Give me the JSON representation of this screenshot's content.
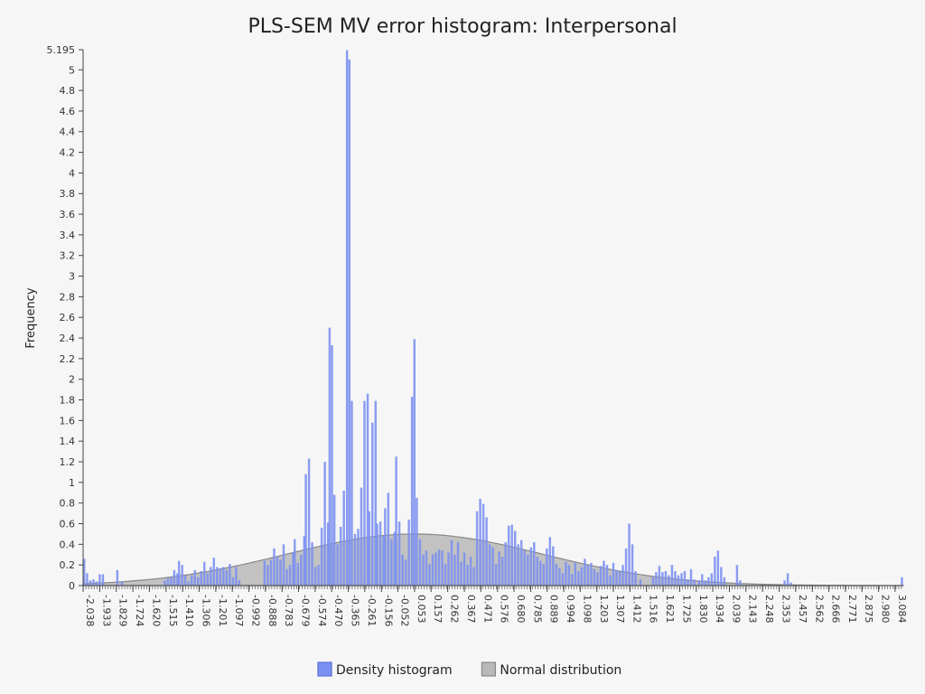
{
  "chart_data": {
    "type": "bar",
    "title": "PLS-SEM MV error histogram: Interpersonal",
    "xlabel": "",
    "ylabel": "Frequency",
    "ylim": [
      0,
      5.195
    ],
    "xlim": [
      -2.038,
      3.136
    ],
    "y_ticks": [
      "0",
      "0.2",
      "0.4",
      "0.6",
      "0.8",
      "1",
      "1.2",
      "1.4",
      "1.6",
      "1.8",
      "2",
      "2.2",
      "2.4",
      "2.6",
      "2.8",
      "3",
      "3.2",
      "3.4",
      "3.6",
      "3.8",
      "4",
      "4.2",
      "4.4",
      "4.6",
      "4.8",
      "5",
      "5.195"
    ],
    "x_tick_labels": [
      "-2.038",
      "-1.933",
      "-1.829",
      "-1.724",
      "-1.620",
      "-1.515",
      "-1.410",
      "-1.306",
      "-1.201",
      "-1.097",
      "-0.992",
      "-0.888",
      "-0.783",
      "-0.679",
      "-0.574",
      "-0.470",
      "-0.365",
      "-0.261",
      "-0.156",
      "-0.052",
      "0.053",
      "0.157",
      "0.262",
      "0.367",
      "0.471",
      "0.576",
      "0.680",
      "0.785",
      "0.889",
      "0.994",
      "1.098",
      "1.203",
      "1.307",
      "1.412",
      "1.516",
      "1.621",
      "1.725",
      "1.830",
      "1.934",
      "2.039",
      "2.143",
      "2.248",
      "2.353",
      "2.457",
      "2.562",
      "2.666",
      "2.771",
      "2.875",
      "2.980",
      "3.084"
    ],
    "bin_width": 0.0174,
    "histogram": [
      {
        "x": -2.038,
        "y": 0.26
      },
      {
        "x": -2.02,
        "y": 0.12
      },
      {
        "x": -2.0,
        "y": 0.05
      },
      {
        "x": -1.98,
        "y": 0.06
      },
      {
        "x": -1.96,
        "y": 0.04
      },
      {
        "x": -1.94,
        "y": 0.11
      },
      {
        "x": -1.92,
        "y": 0.11
      },
      {
        "x": -1.829,
        "y": 0.15
      },
      {
        "x": -1.8,
        "y": 0.04
      },
      {
        "x": -1.53,
        "y": 0.05
      },
      {
        "x": -1.51,
        "y": 0.07
      },
      {
        "x": -1.49,
        "y": 0.08
      },
      {
        "x": -1.47,
        "y": 0.15
      },
      {
        "x": -1.45,
        "y": 0.12
      },
      {
        "x": -1.44,
        "y": 0.24
      },
      {
        "x": -1.42,
        "y": 0.2
      },
      {
        "x": -1.4,
        "y": 0.1
      },
      {
        "x": -1.38,
        "y": 0.04
      },
      {
        "x": -1.36,
        "y": 0.1
      },
      {
        "x": -1.34,
        "y": 0.15
      },
      {
        "x": -1.32,
        "y": 0.08
      },
      {
        "x": -1.3,
        "y": 0.14
      },
      {
        "x": -1.28,
        "y": 0.23
      },
      {
        "x": -1.26,
        "y": 0.12
      },
      {
        "x": -1.24,
        "y": 0.18
      },
      {
        "x": -1.22,
        "y": 0.27
      },
      {
        "x": -1.2,
        "y": 0.18
      },
      {
        "x": -1.18,
        "y": 0.17
      },
      {
        "x": -1.16,
        "y": 0.18
      },
      {
        "x": -1.14,
        "y": 0.15
      },
      {
        "x": -1.12,
        "y": 0.21
      },
      {
        "x": -1.1,
        "y": 0.08
      },
      {
        "x": -1.08,
        "y": 0.18
      },
      {
        "x": -1.06,
        "y": 0.05
      },
      {
        "x": -0.9,
        "y": 0.24
      },
      {
        "x": -0.88,
        "y": 0.2
      },
      {
        "x": -0.86,
        "y": 0.25
      },
      {
        "x": -0.84,
        "y": 0.36
      },
      {
        "x": -0.82,
        "y": 0.28
      },
      {
        "x": -0.8,
        "y": 0.25
      },
      {
        "x": -0.78,
        "y": 0.4
      },
      {
        "x": -0.76,
        "y": 0.16
      },
      {
        "x": -0.74,
        "y": 0.2
      },
      {
        "x": -0.72,
        "y": 0.32
      },
      {
        "x": -0.71,
        "y": 0.45
      },
      {
        "x": -0.69,
        "y": 0.22
      },
      {
        "x": -0.67,
        "y": 0.3
      },
      {
        "x": -0.65,
        "y": 0.48
      },
      {
        "x": -0.64,
        "y": 1.08
      },
      {
        "x": -0.62,
        "y": 1.23
      },
      {
        "x": -0.6,
        "y": 0.42
      },
      {
        "x": -0.58,
        "y": 0.18
      },
      {
        "x": -0.56,
        "y": 0.2
      },
      {
        "x": -0.54,
        "y": 0.56
      },
      {
        "x": -0.52,
        "y": 1.2
      },
      {
        "x": -0.5,
        "y": 0.61
      },
      {
        "x": -0.49,
        "y": 2.5
      },
      {
        "x": -0.475,
        "y": 2.33
      },
      {
        "x": -0.46,
        "y": 0.88
      },
      {
        "x": -0.44,
        "y": 0.4
      },
      {
        "x": -0.42,
        "y": 0.57
      },
      {
        "x": -0.4,
        "y": 0.92
      },
      {
        "x": -0.38,
        "y": 5.19
      },
      {
        "x": -0.365,
        "y": 5.1
      },
      {
        "x": -0.35,
        "y": 1.79
      },
      {
        "x": -0.33,
        "y": 0.5
      },
      {
        "x": -0.31,
        "y": 0.55
      },
      {
        "x": -0.29,
        "y": 0.95
      },
      {
        "x": -0.27,
        "y": 1.79
      },
      {
        "x": -0.25,
        "y": 1.86
      },
      {
        "x": -0.24,
        "y": 0.72
      },
      {
        "x": -0.22,
        "y": 1.58
      },
      {
        "x": -0.2,
        "y": 1.79
      },
      {
        "x": -0.19,
        "y": 0.6
      },
      {
        "x": -0.17,
        "y": 0.62
      },
      {
        "x": -0.15,
        "y": 0.48
      },
      {
        "x": -0.14,
        "y": 0.75
      },
      {
        "x": -0.12,
        "y": 0.9
      },
      {
        "x": -0.1,
        "y": 0.45
      },
      {
        "x": -0.08,
        "y": 0.52
      },
      {
        "x": -0.07,
        "y": 1.25
      },
      {
        "x": -0.05,
        "y": 0.62
      },
      {
        "x": -0.03,
        "y": 0.3
      },
      {
        "x": -0.01,
        "y": 0.25
      },
      {
        "x": 0.01,
        "y": 0.64
      },
      {
        "x": 0.03,
        "y": 1.83
      },
      {
        "x": 0.045,
        "y": 2.39
      },
      {
        "x": 0.06,
        "y": 0.85
      },
      {
        "x": 0.08,
        "y": 0.45
      },
      {
        "x": 0.1,
        "y": 0.3
      },
      {
        "x": 0.12,
        "y": 0.34
      },
      {
        "x": 0.14,
        "y": 0.21
      },
      {
        "x": 0.16,
        "y": 0.3
      },
      {
        "x": 0.18,
        "y": 0.32
      },
      {
        "x": 0.2,
        "y": 0.35
      },
      {
        "x": 0.22,
        "y": 0.34
      },
      {
        "x": 0.24,
        "y": 0.21
      },
      {
        "x": 0.26,
        "y": 0.32
      },
      {
        "x": 0.28,
        "y": 0.44
      },
      {
        "x": 0.3,
        "y": 0.3
      },
      {
        "x": 0.32,
        "y": 0.42
      },
      {
        "x": 0.34,
        "y": 0.23
      },
      {
        "x": 0.36,
        "y": 0.32
      },
      {
        "x": 0.38,
        "y": 0.2
      },
      {
        "x": 0.4,
        "y": 0.28
      },
      {
        "x": 0.42,
        "y": 0.18
      },
      {
        "x": 0.44,
        "y": 0.72
      },
      {
        "x": 0.46,
        "y": 0.84
      },
      {
        "x": 0.48,
        "y": 0.79
      },
      {
        "x": 0.5,
        "y": 0.66
      },
      {
        "x": 0.52,
        "y": 0.4
      },
      {
        "x": 0.54,
        "y": 0.37
      },
      {
        "x": 0.56,
        "y": 0.21
      },
      {
        "x": 0.58,
        "y": 0.33
      },
      {
        "x": 0.6,
        "y": 0.28
      },
      {
        "x": 0.62,
        "y": 0.42
      },
      {
        "x": 0.64,
        "y": 0.58
      },
      {
        "x": 0.66,
        "y": 0.59
      },
      {
        "x": 0.68,
        "y": 0.53
      },
      {
        "x": 0.7,
        "y": 0.4
      },
      {
        "x": 0.72,
        "y": 0.44
      },
      {
        "x": 0.74,
        "y": 0.34
      },
      {
        "x": 0.76,
        "y": 0.3
      },
      {
        "x": 0.78,
        "y": 0.37
      },
      {
        "x": 0.8,
        "y": 0.42
      },
      {
        "x": 0.82,
        "y": 0.28
      },
      {
        "x": 0.84,
        "y": 0.24
      },
      {
        "x": 0.86,
        "y": 0.21
      },
      {
        "x": 0.88,
        "y": 0.36
      },
      {
        "x": 0.9,
        "y": 0.47
      },
      {
        "x": 0.92,
        "y": 0.38
      },
      {
        "x": 0.94,
        "y": 0.21
      },
      {
        "x": 0.96,
        "y": 0.17
      },
      {
        "x": 0.98,
        "y": 0.12
      },
      {
        "x": 1.0,
        "y": 0.23
      },
      {
        "x": 1.02,
        "y": 0.2
      },
      {
        "x": 1.04,
        "y": 0.11
      },
      {
        "x": 1.06,
        "y": 0.22
      },
      {
        "x": 1.08,
        "y": 0.14
      },
      {
        "x": 1.1,
        "y": 0.18
      },
      {
        "x": 1.12,
        "y": 0.26
      },
      {
        "x": 1.14,
        "y": 0.2
      },
      {
        "x": 1.16,
        "y": 0.22
      },
      {
        "x": 1.18,
        "y": 0.16
      },
      {
        "x": 1.2,
        "y": 0.13
      },
      {
        "x": 1.22,
        "y": 0.19
      },
      {
        "x": 1.24,
        "y": 0.24
      },
      {
        "x": 1.26,
        "y": 0.2
      },
      {
        "x": 1.28,
        "y": 0.1
      },
      {
        "x": 1.3,
        "y": 0.22
      },
      {
        "x": 1.32,
        "y": 0.15
      },
      {
        "x": 1.34,
        "y": 0.14
      },
      {
        "x": 1.36,
        "y": 0.2
      },
      {
        "x": 1.38,
        "y": 0.36
      },
      {
        "x": 1.4,
        "y": 0.6
      },
      {
        "x": 1.42,
        "y": 0.4
      },
      {
        "x": 1.44,
        "y": 0.14
      },
      {
        "x": 1.47,
        "y": 0.06
      },
      {
        "x": 1.55,
        "y": 0.08
      },
      {
        "x": 1.57,
        "y": 0.13
      },
      {
        "x": 1.59,
        "y": 0.19
      },
      {
        "x": 1.61,
        "y": 0.13
      },
      {
        "x": 1.63,
        "y": 0.14
      },
      {
        "x": 1.65,
        "y": 0.1
      },
      {
        "x": 1.67,
        "y": 0.2
      },
      {
        "x": 1.69,
        "y": 0.14
      },
      {
        "x": 1.71,
        "y": 0.1
      },
      {
        "x": 1.73,
        "y": 0.12
      },
      {
        "x": 1.75,
        "y": 0.14
      },
      {
        "x": 1.77,
        "y": 0.06
      },
      {
        "x": 1.79,
        "y": 0.16
      },
      {
        "x": 1.81,
        "y": 0.06
      },
      {
        "x": 1.84,
        "y": 0.05
      },
      {
        "x": 1.86,
        "y": 0.11
      },
      {
        "x": 1.88,
        "y": 0.05
      },
      {
        "x": 1.9,
        "y": 0.08
      },
      {
        "x": 1.92,
        "y": 0.12
      },
      {
        "x": 1.94,
        "y": 0.28
      },
      {
        "x": 1.96,
        "y": 0.34
      },
      {
        "x": 1.98,
        "y": 0.18
      },
      {
        "x": 2.0,
        "y": 0.08
      },
      {
        "x": 2.08,
        "y": 0.2
      },
      {
        "x": 2.1,
        "y": 0.05
      },
      {
        "x": 2.38,
        "y": 0.05
      },
      {
        "x": 2.4,
        "y": 0.12
      },
      {
        "x": 2.42,
        "y": 0.03
      },
      {
        "x": 3.12,
        "y": 0.08
      }
    ],
    "normal": {
      "mean": 0.053,
      "sd": 0.81,
      "peak": 0.5
    },
    "legend": [
      {
        "name": "Density histogram",
        "color": "#7b8ff0",
        "border": "#5a6fd6"
      },
      {
        "name": "Normal distribution",
        "color": "#b8b8b8",
        "border": "#888888"
      }
    ],
    "legend_position": "bottom-center",
    "grid": false
  }
}
